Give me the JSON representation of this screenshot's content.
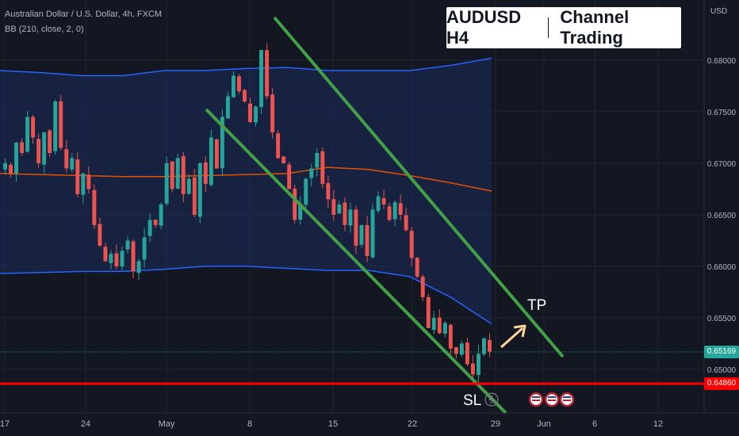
{
  "header": {
    "symbol_line": "Australian Dollar / U.S. Dollar, 4h, FXCM",
    "indicator_line": "BB (210, close, 2, 0)"
  },
  "title_box": {
    "left": "AUDUSD H4",
    "right": "Channel Trading"
  },
  "currency": "USD",
  "annotations": {
    "tp": "TP",
    "sl": "SL"
  },
  "price_labels": {
    "last": "0.65169",
    "sl_level": "0.64860"
  },
  "colors": {
    "background": "#131722",
    "up": "#26a69a",
    "down": "#ef5350",
    "band": "#2962ff",
    "basis": "#e65100",
    "channel": "#43a047",
    "sl_line": "#ff0000",
    "last_label": "#26a69a",
    "sl_label": "#ff0000",
    "arrow": "#ffd699"
  },
  "chart_data": {
    "type": "candlestick",
    "x_ticks": [
      "17",
      "24",
      "May",
      "8",
      "15",
      "22",
      "29",
      "Jun",
      "6",
      "12"
    ],
    "y_ticks": [
      "0.68000",
      "0.67500",
      "0.67000",
      "0.66500",
      "0.66000",
      "0.65500",
      "0.65000"
    ],
    "ylim": [
      0.6478,
      0.683
    ],
    "grid": true,
    "price_path": [
      0.67,
      0.669,
      0.672,
      0.671,
      0.6745,
      0.6725,
      0.67,
      0.673,
      0.671,
      0.676,
      0.6715,
      0.6695,
      0.6705,
      0.667,
      0.669,
      0.6675,
      0.664,
      0.662,
      0.6605,
      0.6612,
      0.66,
      0.6615,
      0.6625,
      0.6595,
      0.6605,
      0.6628,
      0.6645,
      0.664,
      0.666,
      0.67,
      0.6675,
      0.6705,
      0.667,
      0.6685,
      0.665,
      0.67,
      0.668,
      0.6725,
      0.6695,
      0.6745,
      0.6765,
      0.6785,
      0.677,
      0.676,
      0.674,
      0.6755,
      0.681,
      0.6765,
      0.673,
      0.6705,
      0.67,
      0.6675,
      0.6645,
      0.666,
      0.6685,
      0.6695,
      0.671,
      0.668,
      0.6665,
      0.665,
      0.666,
      0.664,
      0.6655,
      0.662,
      0.664,
      0.661,
      0.6655,
      0.6668,
      0.666,
      0.6645,
      0.6662,
      0.665,
      0.6635,
      0.6608,
      0.659,
      0.657,
      0.654,
      0.655,
      0.6535,
      0.6545,
      0.652,
      0.6515,
      0.6525,
      0.6505,
      0.6495,
      0.6515,
      0.653,
      0.6517
    ],
    "bb_upper": [
      0.679,
      0.6788,
      0.6785,
      0.6785,
      0.679,
      0.679,
      0.6792,
      0.6793,
      0.679,
      0.679,
      0.679,
      0.6795,
      0.6802
    ],
    "bb_basis": [
      0.669,
      0.6689,
      0.6688,
      0.6687,
      0.6687,
      0.6688,
      0.6689,
      0.669,
      0.6696,
      0.6694,
      0.6688,
      0.6681,
      0.6673
    ],
    "bb_lower": [
      0.6593,
      0.6594,
      0.6595,
      0.6595,
      0.6597,
      0.66,
      0.66,
      0.6598,
      0.6596,
      0.6596,
      0.659,
      0.657,
      0.6544
    ],
    "channel_upper": {
      "start": 0.682,
      "end": 0.6514
    },
    "channel_lower": {
      "start": 0.676,
      "end": 0.648
    },
    "last_price": 0.65169,
    "sl_level": 0.6486
  }
}
